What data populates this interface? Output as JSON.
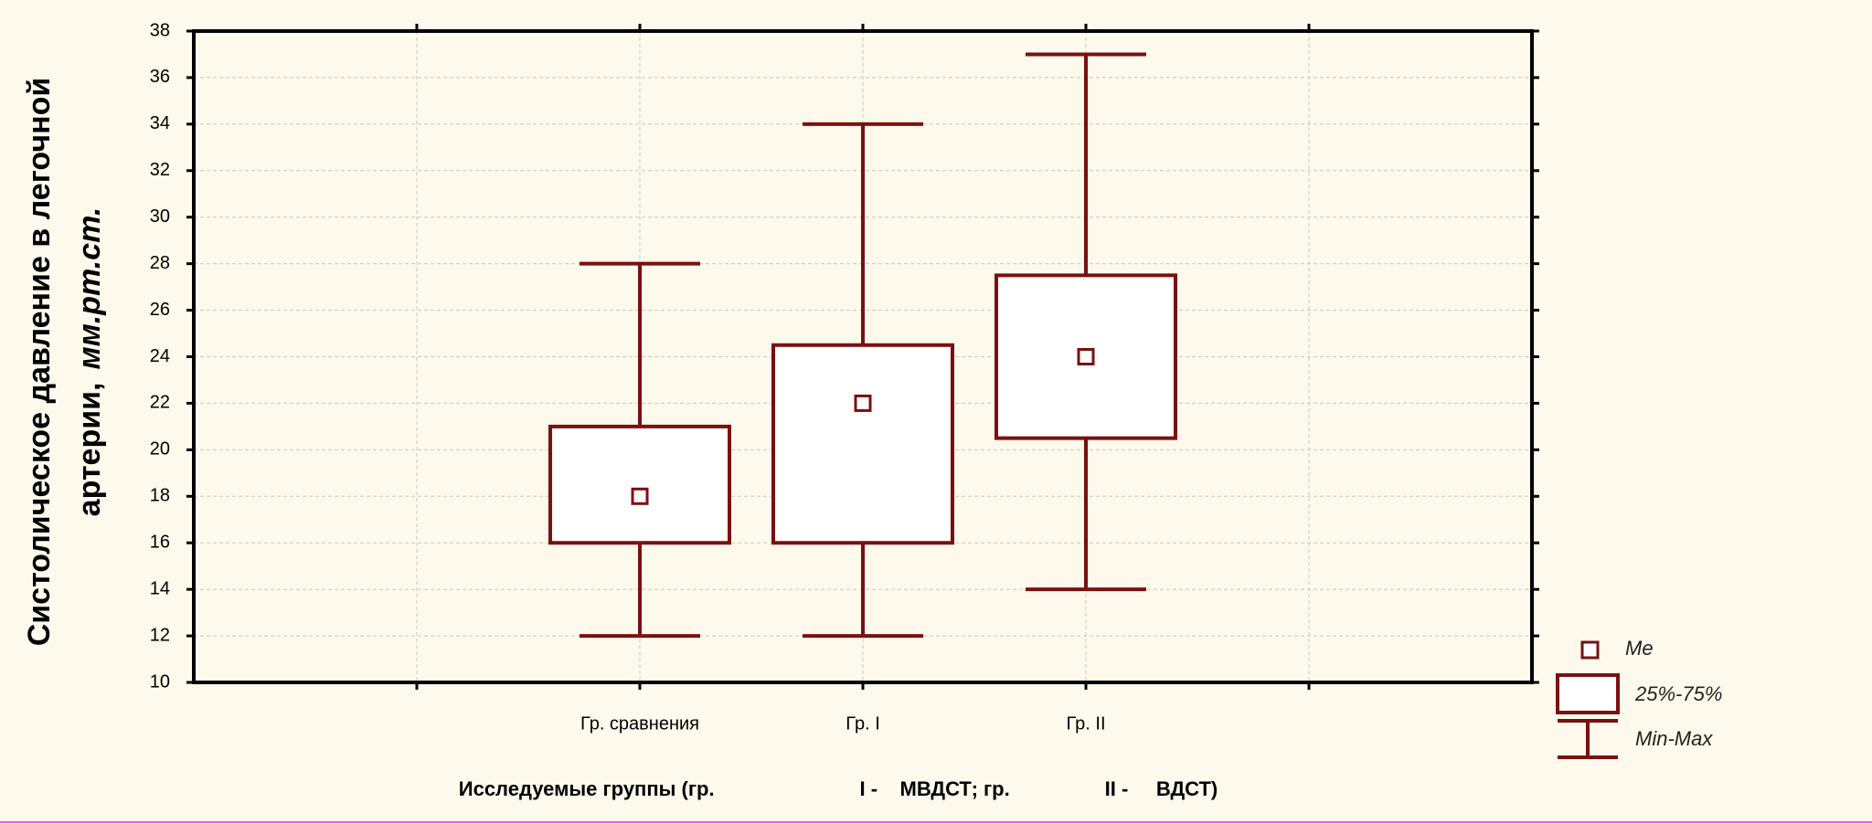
{
  "chart_data": {
    "type": "box",
    "y_label": "Систолическое давление в легочной",
    "y_label_line2": "артерии,",
    "y_label_unit": "мм.рт.ст.",
    "x_label": "Исследуемые группы (гр.                          I -    МВДСТ; гр.                 II -     ВДСТ)",
    "categories": [
      null,
      "Гр. сравнения",
      "Гр.     I",
      "Гр.     II",
      null
    ],
    "min": [
      null,
      12,
      12,
      14,
      null
    ],
    "q1": [
      null,
      16,
      16,
      20.5,
      null
    ],
    "median": [
      null,
      18,
      22,
      24,
      null
    ],
    "q3": [
      null,
      21,
      24.5,
      27.5,
      null
    ],
    "max": [
      null,
      28,
      34,
      37,
      null
    ],
    "color": "#7b1010",
    "ylim": [
      10,
      38
    ],
    "yticks": [
      10,
      12,
      14,
      16,
      18,
      20,
      22,
      24,
      26,
      28,
      30,
      32,
      34,
      36,
      38
    ],
    "grid": true,
    "legend": [
      "Me",
      "25%-75%",
      "Min-Max"
    ],
    "legend_position": "bottom-right"
  }
}
